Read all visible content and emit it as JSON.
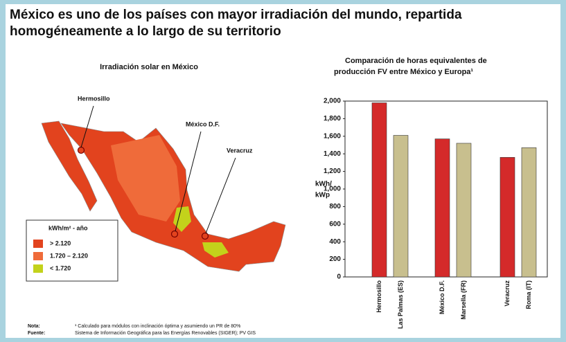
{
  "header": {
    "title_lines": [
      "México es uno de los países con mayor irradiación del mundo, repartida",
      "homogéneamente a lo largo de su territorio"
    ]
  },
  "map": {
    "title": "Irradiación solar en México",
    "cities": [
      "Hermosillo",
      "México D.F.",
      "Veracruz"
    ],
    "legend": {
      "title": "kWh/m² - año",
      "items": [
        {
          "label": "> 2.120",
          "color": "#e2431e"
        },
        {
          "label": "1.720 – 2.120",
          "color": "#ef6b3a"
        },
        {
          "label": "< 1.720",
          "color": "#c3d21b"
        }
      ]
    }
  },
  "chart_data": {
    "type": "bar",
    "title_lines": [
      "Comparación de horas equivalentes de",
      "producción FV entre México y Europa¹"
    ],
    "y_label_lines": [
      "kWh/",
      "kWp"
    ],
    "categories": [
      "Hermosillo",
      "Las Palmas (ES)",
      "México D.F.",
      "Marsella (FR)",
      "Veracruz",
      "Roma (IT)"
    ],
    "values": [
      1980,
      1610,
      1570,
      1520,
      1360,
      1470
    ],
    "colors": [
      "#d42a2a",
      "#c8bf8e",
      "#d42a2a",
      "#c8bf8e",
      "#d42a2a",
      "#c8bf8e"
    ],
    "ylim": [
      0,
      2000
    ],
    "yticks": [
      0,
      200,
      400,
      600,
      800,
      {
        "value": 1000,
        "label": "1,000"
      },
      {
        "value": 1200,
        "label": "1,200"
      },
      {
        "value": 1400,
        "label": "1,400"
      },
      {
        "value": 1600,
        "label": "1,600"
      },
      {
        "value": 1800,
        "label": "1,800"
      },
      {
        "value": 2000,
        "label": "2,000"
      }
    ],
    "grid": false
  },
  "footer": {
    "note_label": "Nota:",
    "note": "¹ Calculado para módulos con inclinación óptima y asumiendo un PR de 80%",
    "source_label": "Fuente:",
    "source": "Sistema de Información Geográfica para las Energías Renovables (SIGER); PV GIS"
  }
}
